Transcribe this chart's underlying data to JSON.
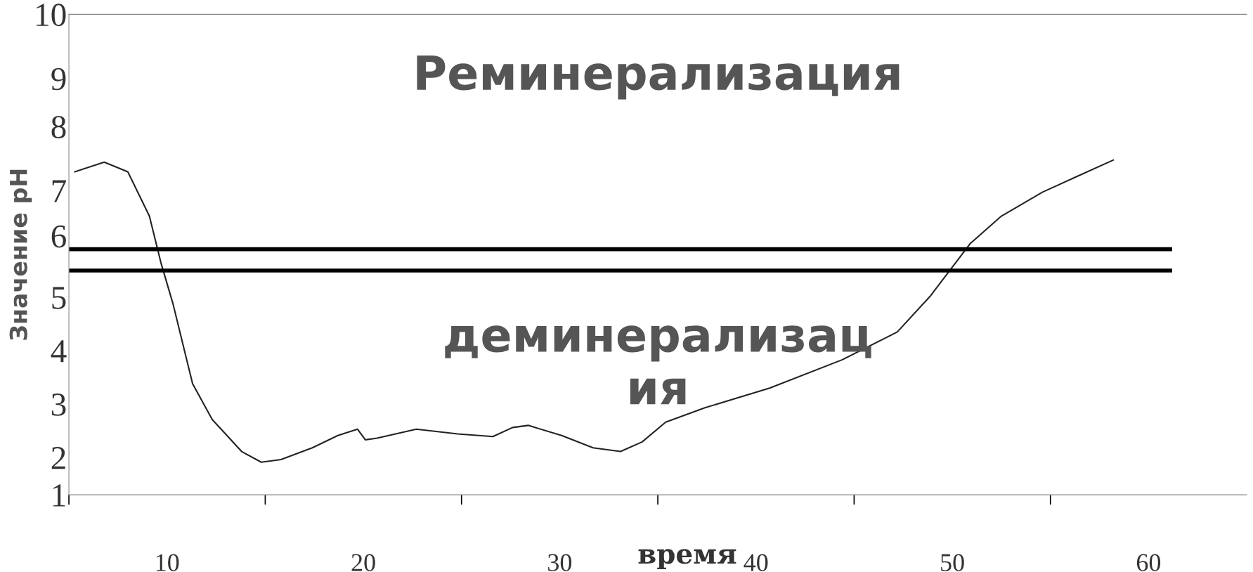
{
  "chart_data": {
    "type": "line",
    "xlabel": "время",
    "ylabel": "Значение pH",
    "annotations": [
      "Реминерализация",
      "деминерализац\nия"
    ],
    "xlim": [
      5,
      65
    ],
    "xticks": [
      {
        "value": 5,
        "label": null
      },
      {
        "value": 10,
        "label": "10"
      },
      {
        "value": 15,
        "label": null
      },
      {
        "value": 20,
        "label": "20"
      },
      {
        "value": 25,
        "label": null
      },
      {
        "value": 30,
        "label": "30"
      },
      {
        "value": 35,
        "label": null
      },
      {
        "value": 40,
        "label": "40"
      },
      {
        "value": 45,
        "label": null
      },
      {
        "value": 50,
        "label": "50"
      },
      {
        "value": 55,
        "label": null
      },
      {
        "value": 60,
        "label": "60"
      }
    ],
    "ylim": [
      1,
      10
    ],
    "yticks": [
      {
        "value": 1,
        "label": "1"
      },
      {
        "value": 1.7,
        "label": "2"
      },
      {
        "value": 2.7,
        "label": "3"
      },
      {
        "value": 3.7,
        "label": "4"
      },
      {
        "value": 4.7,
        "label": "5"
      },
      {
        "value": 5.85,
        "label": "6"
      },
      {
        "value": 6.7,
        "label": "7"
      },
      {
        "value": 7.9,
        "label": "8"
      },
      {
        "value": 8.8,
        "label": "9"
      },
      {
        "value": 10,
        "label": "10"
      }
    ],
    "grid": false,
    "marker": "none",
    "line_style": "solid",
    "series": [
      {
        "color": "#222222",
        "x": [
          5.3,
          6.8,
          8.0,
          9.1,
          9.7,
          10.3,
          11.3,
          12.3,
          13.8,
          14.8,
          15.8,
          17.4,
          18.7,
          19.7,
          20.1,
          20.7,
          22.7,
          24.8,
          26.6,
          27.6,
          28.4,
          30.1,
          31.7,
          33.1,
          34.2,
          35.4,
          37.4,
          40.7,
          44.4,
          47.2,
          48.9,
          50.9,
          52.5,
          54.6,
          58.2
        ],
        "values": [
          7.05,
          7.23,
          7.05,
          6.22,
          5.33,
          4.58,
          3.08,
          2.41,
          1.81,
          1.61,
          1.66,
          1.88,
          2.11,
          2.23,
          2.03,
          2.06,
          2.23,
          2.14,
          2.09,
          2.26,
          2.3,
          2.11,
          1.88,
          1.81,
          1.99,
          2.36,
          2.63,
          3.0,
          3.53,
          4.05,
          4.73,
          5.7,
          6.22,
          6.67,
          7.27
        ]
      }
    ],
    "ref_lines": [
      {
        "axis": "y",
        "value": 5.6,
        "color": "#000000",
        "line_style": "solid"
      },
      {
        "axis": "y",
        "value": 5.2,
        "color": "#000000",
        "line_style": "solid"
      }
    ]
  }
}
